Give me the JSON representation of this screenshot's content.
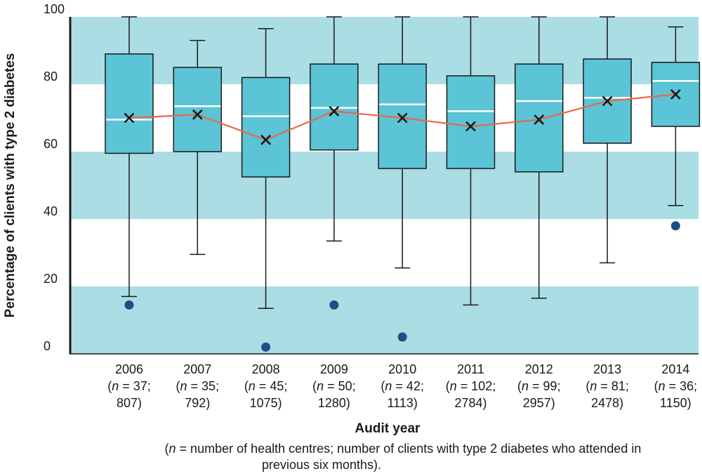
{
  "chart_data": {
    "type": "box",
    "ylabel": "Percentage of clients with type 2 diabetes",
    "xlabel": "Audit year",
    "footnote_lines": [
      "(n = number of health centres; number of clients with type 2 diabetes who attended in",
      "previous six months)."
    ],
    "ylim": [
      0,
      100
    ],
    "yticks": [
      0,
      20,
      40,
      60,
      80,
      100
    ],
    "background_bands": [
      [
        0,
        20
      ],
      [
        40,
        60
      ],
      [
        80,
        100
      ]
    ],
    "categories": [
      {
        "year": "2006",
        "n_line": "(n = 37;",
        "clients_line": "807)"
      },
      {
        "year": "2007",
        "n_line": "(n = 35;",
        "clients_line": "792)"
      },
      {
        "year": "2008",
        "n_line": "(n = 45;",
        "clients_line": "1075)"
      },
      {
        "year": "2009",
        "n_line": "(n = 50;",
        "clients_line": "1280)"
      },
      {
        "year": "2010",
        "n_line": "(n = 42;",
        "clients_line": "1113)"
      },
      {
        "year": "2011",
        "n_line": "(n = 102;",
        "clients_line": "2784)"
      },
      {
        "year": "2012",
        "n_line": "(n = 99;",
        "clients_line": "2957)"
      },
      {
        "year": "2013",
        "n_line": "(n = 81;",
        "clients_line": "2478)"
      },
      {
        "year": "2014",
        "n_line": "(n = 36;",
        "clients_line": "1150)"
      }
    ],
    "boxes": [
      {
        "whisker_low": 17.0,
        "q1": 59.5,
        "median": 69.5,
        "q3": 89.0,
        "whisker_high": 100,
        "mean": 70.0,
        "outliers": [
          14.5
        ]
      },
      {
        "whisker_low": 29.5,
        "q1": 60.0,
        "median": 73.5,
        "q3": 85.0,
        "whisker_high": 93.0,
        "mean": 71.0,
        "outliers": []
      },
      {
        "whisker_low": 13.5,
        "q1": 52.5,
        "median": 70.5,
        "q3": 82.0,
        "whisker_high": 96.5,
        "mean": 63.5,
        "outliers": [
          2.0
        ]
      },
      {
        "whisker_low": 33.5,
        "q1": 60.5,
        "median": 73.0,
        "q3": 86.0,
        "whisker_high": 100,
        "mean": 72.0,
        "outliers": [
          14.5
        ]
      },
      {
        "whisker_low": 25.5,
        "q1": 55.0,
        "median": 74.0,
        "q3": 86.0,
        "whisker_high": 100,
        "mean": 70.0,
        "outliers": [
          5.0
        ]
      },
      {
        "whisker_low": 14.5,
        "q1": 55.0,
        "median": 72.0,
        "q3": 82.5,
        "whisker_high": 100,
        "mean": 67.5,
        "outliers": []
      },
      {
        "whisker_low": 16.5,
        "q1": 54.0,
        "median": 75.0,
        "q3": 86.0,
        "whisker_high": 100,
        "mean": 69.5,
        "outliers": []
      },
      {
        "whisker_low": 27.0,
        "q1": 62.5,
        "median": 76.0,
        "q3": 87.5,
        "whisker_high": 100,
        "mean": 75.0,
        "outliers": []
      },
      {
        "whisker_low": 44.0,
        "q1": 67.5,
        "median": 81.0,
        "q3": 86.5,
        "whisker_high": 97.0,
        "mean": 77.0,
        "outliers": [
          38.0
        ]
      }
    ],
    "colors": {
      "band": "#abdde4",
      "box_fill": "#5bc4d6",
      "box_stroke": "#1a1a1a",
      "median": "#ffffff",
      "mean_line": "#e8694a",
      "mean_marker": "#1a1a1a",
      "outlier": "#1b4f86"
    },
    "grid": false,
    "legend": "none"
  }
}
